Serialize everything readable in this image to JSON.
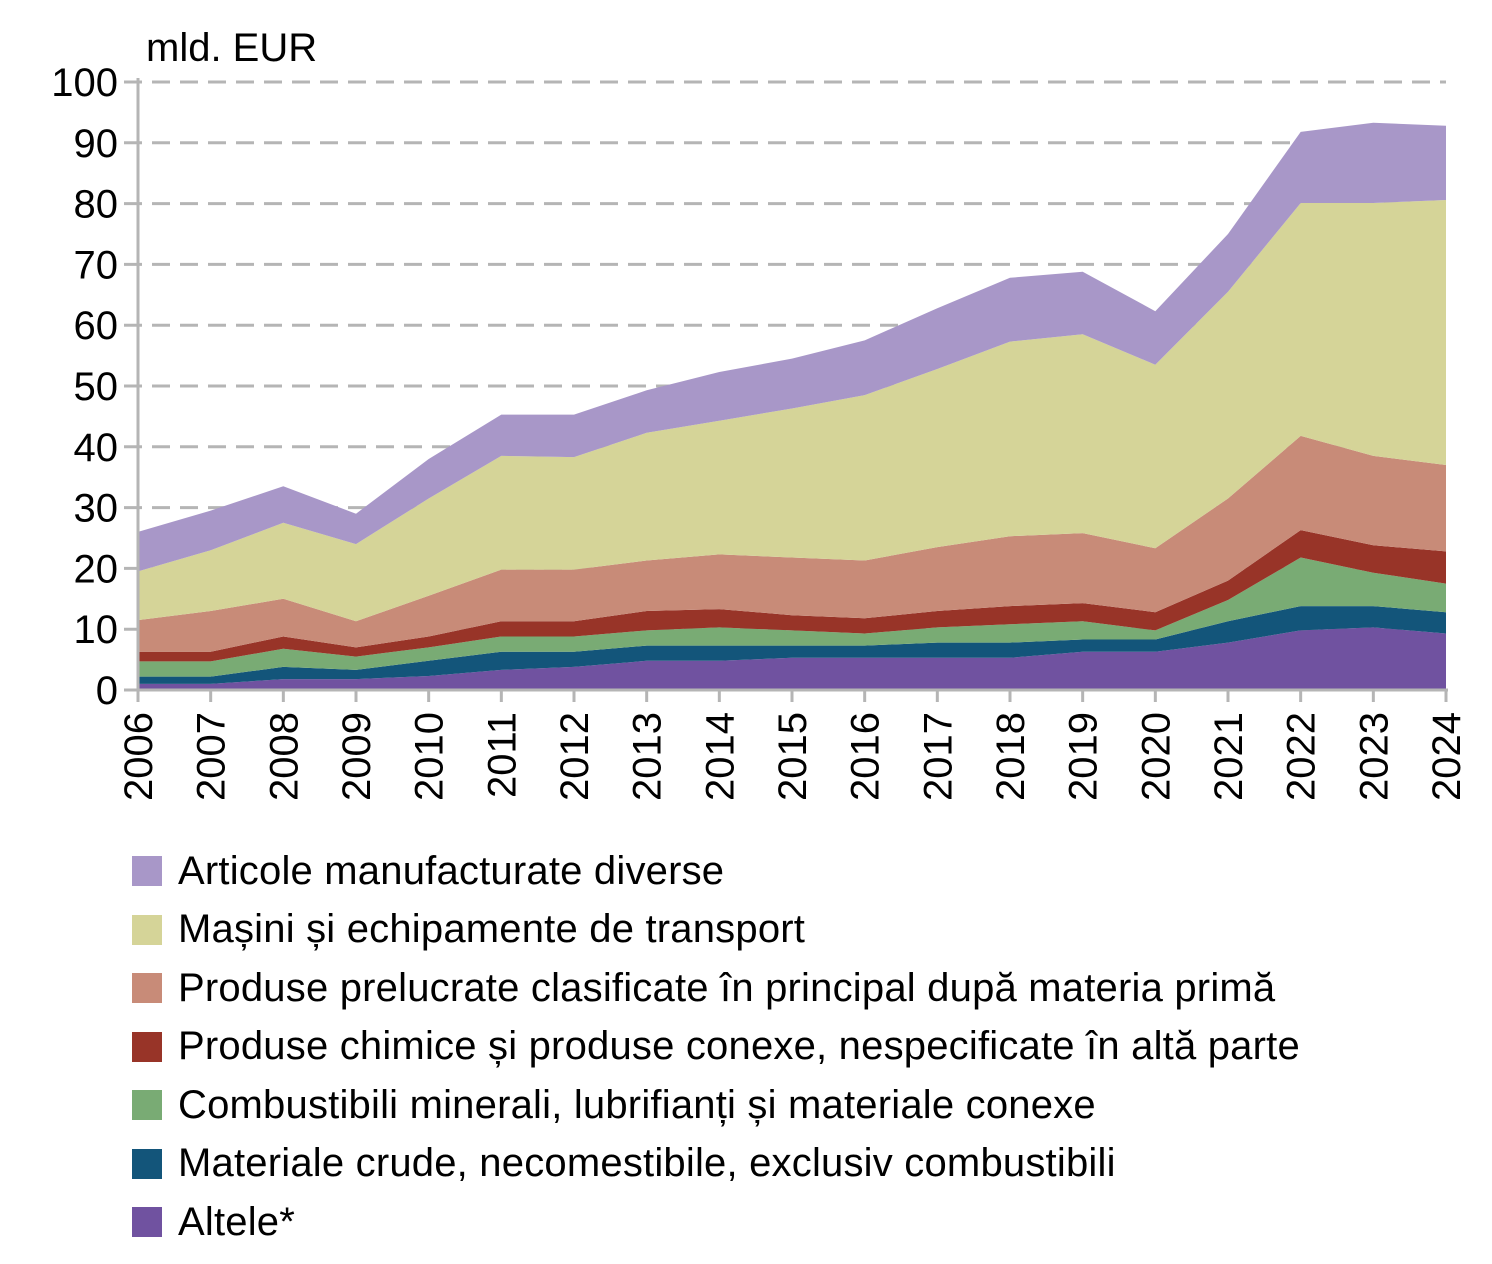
{
  "chart_data": {
    "type": "area",
    "stacked": true,
    "title": "",
    "ylabel": "mld. EUR",
    "xlabel": "",
    "ylim": [
      0,
      100
    ],
    "yticks": [
      0,
      10,
      20,
      30,
      40,
      50,
      60,
      70,
      80,
      90,
      100
    ],
    "grid": "horizontal-dashed",
    "legend_position": "bottom",
    "x": [
      "2006",
      "2007",
      "2008",
      "2009",
      "2010",
      "2011",
      "2012",
      "2013",
      "2014",
      "2015",
      "2016",
      "2017",
      "2018",
      "2019",
      "2020",
      "2021",
      "2022",
      "2023",
      "2024"
    ],
    "series": [
      {
        "name": "Altele*",
        "color": "#7052a0",
        "values": [
          1.0,
          1.0,
          1.8,
          1.8,
          2.3,
          3.3,
          3.8,
          4.8,
          4.8,
          5.3,
          5.3,
          5.3,
          5.3,
          6.3,
          6.3,
          7.8,
          9.8,
          10.3,
          9.3
        ]
      },
      {
        "name": "Materiale crude, necomestibile, exclusiv combustibili",
        "color": "#13557a",
        "values": [
          1.2,
          1.2,
          2.0,
          1.5,
          2.5,
          3.0,
          2.5,
          2.5,
          2.5,
          2.0,
          2.0,
          2.5,
          2.5,
          2.0,
          2.0,
          3.5,
          4.0,
          3.5,
          3.5
        ]
      },
      {
        "name": "Combustibili minerali, lubrifianți și materiale conexe",
        "color": "#79ab74",
        "values": [
          2.5,
          2.5,
          3.0,
          2.2,
          2.2,
          2.5,
          2.5,
          2.5,
          3.0,
          2.5,
          2.0,
          2.5,
          3.0,
          3.0,
          1.5,
          3.5,
          8.0,
          5.5,
          4.7
        ]
      },
      {
        "name": "Produse chimice și produse conexe, nespecificate în altă parte",
        "color": "#983428",
        "values": [
          1.6,
          1.6,
          2.0,
          1.5,
          1.8,
          2.5,
          2.5,
          3.2,
          3.0,
          2.5,
          2.5,
          2.7,
          3.0,
          3.0,
          3.0,
          3.2,
          4.5,
          4.5,
          5.3
        ]
      },
      {
        "name": "Produse prelucrate clasificate în principal după materia primă",
        "color": "#c88b78",
        "values": [
          5.2,
          6.7,
          6.2,
          4.3,
          6.7,
          8.5,
          8.5,
          8.3,
          9.0,
          9.5,
          9.5,
          10.5,
          11.5,
          11.5,
          10.5,
          13.5,
          15.5,
          14.7,
          14.2
        ]
      },
      {
        "name": "Mașini și echipamente de transport",
        "color": "#d5d498",
        "values": [
          8.0,
          10.0,
          12.5,
          12.7,
          16.0,
          18.7,
          18.5,
          21.0,
          22.0,
          24.5,
          27.2,
          29.3,
          32.0,
          32.7,
          30.2,
          34.0,
          38.3,
          41.6,
          43.6
        ]
      },
      {
        "name": "Articole manufacturate diverse",
        "color": "#a897c8",
        "values": [
          6.5,
          6.5,
          6.0,
          5.0,
          6.5,
          6.8,
          7.0,
          7.0,
          8.0,
          8.2,
          9.0,
          10.0,
          10.5,
          10.3,
          8.8,
          9.5,
          11.7,
          13.2,
          12.2
        ]
      }
    ],
    "legend_order": [
      6,
      5,
      4,
      3,
      2,
      1,
      0
    ]
  }
}
